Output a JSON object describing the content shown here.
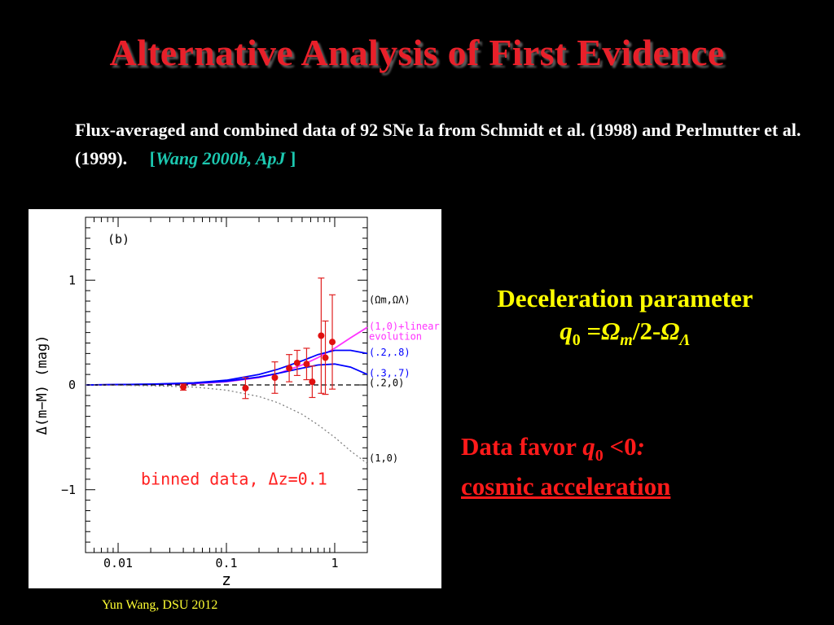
{
  "slide": {
    "title": "Alternative Analysis of First Evidence",
    "description": "Flux-averaged and combined data of 92 SNe Ia from Schmidt et al. (1998) and Perlmutter et al. (1999).",
    "citation_open": "[",
    "citation_text": "Wang 2000b, ApJ",
    "citation_close": " ]",
    "decel_heading": "Deceleration parameter",
    "formula": {
      "q": "q",
      "q_sub": "0",
      "eq": " =",
      "omega_m": "Ω",
      "omega_m_sub": "m",
      "mid": "/2-",
      "omega_l": "Ω",
      "omega_l_sub": "Λ"
    },
    "favor_line1_a": "Data favor ",
    "favor_line1_q": "q",
    "favor_line1_sub": "0",
    "favor_line1_b": " <0",
    "favor_line1_colon": ":",
    "favor_line2": "cosmic acceleration",
    "footer": "Yun Wang, DSU 2012",
    "colors": {
      "title": "#e8202a",
      "citation": "#1cc8b0",
      "decel": "#ffff00",
      "favor": "#ff1a1a",
      "footer": "#ffff33"
    }
  },
  "chart_data": {
    "type": "scatter",
    "panel_label": "(b)",
    "xlabel": "z",
    "ylabel": "Δ(m−M)  (mag)",
    "x_scale": "log",
    "xlim": [
      0.005,
      2.0
    ],
    "ylim": [
      -1.6,
      1.6
    ],
    "x_ticks": [
      0.01,
      0.1,
      1
    ],
    "x_tick_labels": [
      "0.01",
      "0.1",
      "1"
    ],
    "y_ticks": [
      -1,
      0,
      1
    ],
    "y_tick_labels": [
      "−1",
      "0",
      "1"
    ],
    "annotation": "binned data, Δz=0.1",
    "curve_labels": [
      {
        "text": "(Ωm,ΩΛ)",
        "color": "#000000"
      },
      {
        "text": "(1,0)+linear",
        "color": "#ff33ff"
      },
      {
        "text": "evolution",
        "color": "#ff33ff"
      },
      {
        "text": "(.2,.8)",
        "color": "#0000ff"
      },
      {
        "text": "(.3,.7)",
        "color": "#0000ff"
      },
      {
        "text": "(.2,0)",
        "color": "#000000"
      },
      {
        "text": "(1,0)",
        "color": "#000000"
      }
    ],
    "points": [
      {
        "x": 0.04,
        "y": -0.02,
        "err": 0.03
      },
      {
        "x": 0.15,
        "y": -0.03,
        "err": 0.1
      },
      {
        "x": 0.28,
        "y": 0.07,
        "err": 0.15
      },
      {
        "x": 0.38,
        "y": 0.16,
        "err": 0.13
      },
      {
        "x": 0.45,
        "y": 0.21,
        "err": 0.12
      },
      {
        "x": 0.55,
        "y": 0.2,
        "err": 0.15
      },
      {
        "x": 0.62,
        "y": 0.03,
        "err": 0.15
      },
      {
        "x": 0.75,
        "y": 0.47,
        "err": 0.55
      },
      {
        "x": 0.82,
        "y": 0.26,
        "err": 0.35
      },
      {
        "x": 0.95,
        "y": 0.41,
        "err": 0.45
      }
    ],
    "series": [
      {
        "style": "solid",
        "color": "#ff33ff",
        "x": [
          0.005,
          0.02,
          0.05,
          0.1,
          0.2,
          0.3,
          0.5,
          0.7,
          1.0,
          1.4,
          2.0
        ],
        "y": [
          0,
          0.005,
          0.012,
          0.03,
          0.07,
          0.11,
          0.19,
          0.26,
          0.35,
          0.45,
          0.55
        ]
      },
      {
        "style": "solid",
        "color": "#0000ff",
        "x": [
          0.005,
          0.02,
          0.05,
          0.1,
          0.2,
          0.3,
          0.5,
          0.7,
          1.0,
          1.4,
          2.0
        ],
        "y": [
          0,
          0.008,
          0.02,
          0.045,
          0.1,
          0.15,
          0.23,
          0.29,
          0.33,
          0.33,
          0.3
        ]
      },
      {
        "style": "solid",
        "color": "#0000ff",
        "x": [
          0.005,
          0.02,
          0.05,
          0.1,
          0.2,
          0.3,
          0.5,
          0.7,
          1.0,
          1.4,
          2.0
        ],
        "y": [
          0,
          0.006,
          0.016,
          0.035,
          0.075,
          0.11,
          0.16,
          0.19,
          0.2,
          0.17,
          0.1
        ]
      },
      {
        "style": "dashed",
        "color": "#000000",
        "x": [
          0.005,
          2.0
        ],
        "y": [
          0,
          0
        ]
      },
      {
        "style": "dotted",
        "color": "#777777",
        "x": [
          0.005,
          0.02,
          0.05,
          0.1,
          0.2,
          0.3,
          0.5,
          0.7,
          1.0,
          1.4,
          2.0
        ],
        "y": [
          0,
          -0.008,
          -0.02,
          -0.05,
          -0.11,
          -0.17,
          -0.28,
          -0.38,
          -0.5,
          -0.63,
          -0.75
        ]
      }
    ]
  }
}
